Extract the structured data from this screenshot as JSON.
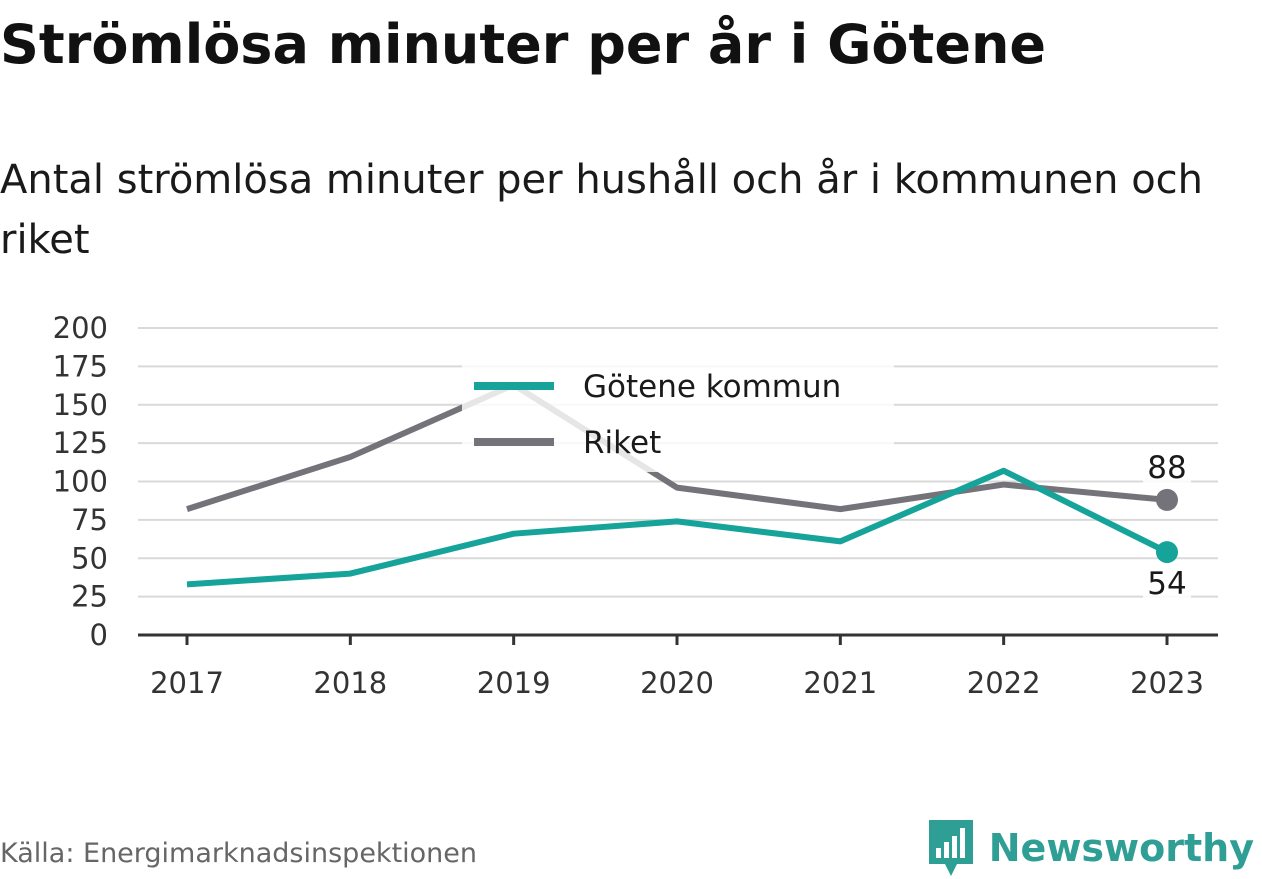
{
  "header": {
    "title": "Strömlösa minuter per år i Götene",
    "subtitle": "Antal strömlösa minuter per hushåll och år i kommunen och riket"
  },
  "footer": {
    "source": "Källa: Energimarknadsinspektionen",
    "brand": "Newsworthy",
    "brand_icon": "bar-chart-speech-bubble-icon"
  },
  "colors": {
    "gotene": "#16a39a",
    "riket": "#74737a",
    "grid": "#d9d9d9",
    "axis": "#333333",
    "brand": "#2f9e94"
  },
  "chart_data": {
    "type": "line",
    "x": [
      "2017",
      "2018",
      "2019",
      "2020",
      "2021",
      "2022",
      "2023"
    ],
    "ylim": [
      0,
      200
    ],
    "yticks": [
      "0",
      "25",
      "50",
      "75",
      "100",
      "125",
      "150",
      "175",
      "200"
    ],
    "grid": true,
    "legend_position": "top-center",
    "series": [
      {
        "name": "Götene kommun",
        "color": "#16a39a",
        "values": [
          33,
          40,
          66,
          74,
          61,
          107,
          54
        ],
        "end_label": "54"
      },
      {
        "name": "Riket",
        "color": "#74737a",
        "values": [
          82,
          116,
          163,
          96,
          82,
          98,
          88
        ],
        "end_label": "88"
      }
    ]
  }
}
